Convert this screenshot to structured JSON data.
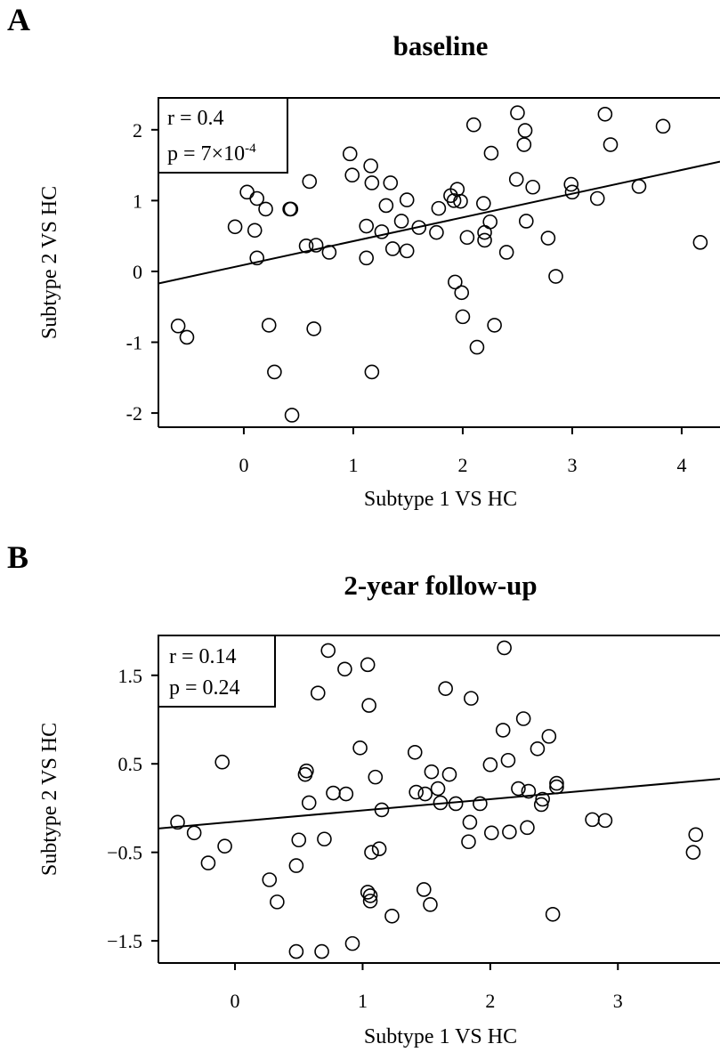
{
  "chart_data": [
    {
      "type": "scatter",
      "panel": "A",
      "title": "baseline",
      "xlabel": "Subtype 1 VS HC",
      "ylabel": "Subtype 2 VS HC",
      "xlim": [
        -0.78,
        4.35
      ],
      "ylim": [
        -2.2,
        2.45
      ],
      "xticks": [
        0,
        1,
        2,
        3,
        4
      ],
      "yticks": [
        -2,
        -1,
        0,
        1,
        2
      ],
      "grid": false,
      "stats": {
        "r": "r = 0.4",
        "p_prefix": "p = 7×10",
        "p_exp": "-4"
      },
      "fit_line": {
        "x": [
          -0.78,
          4.35
        ],
        "y": [
          -0.17,
          1.55
        ]
      },
      "points": [
        [
          -0.6,
          -0.77
        ],
        [
          -0.52,
          -0.93
        ],
        [
          -0.08,
          0.63
        ],
        [
          0.03,
          1.12
        ],
        [
          0.1,
          0.58
        ],
        [
          0.12,
          1.03
        ],
        [
          0.12,
          0.19
        ],
        [
          0.2,
          0.88
        ],
        [
          0.23,
          -0.76
        ],
        [
          0.28,
          -1.42
        ],
        [
          0.42,
          0.88
        ],
        [
          0.43,
          0.88
        ],
        [
          0.44,
          -2.03
        ],
        [
          0.57,
          0.36
        ],
        [
          0.6,
          1.27
        ],
        [
          0.64,
          -0.81
        ],
        [
          0.66,
          0.37
        ],
        [
          0.78,
          0.27
        ],
        [
          0.97,
          1.66
        ],
        [
          0.99,
          1.36
        ],
        [
          1.12,
          0.64
        ],
        [
          1.12,
          0.19
        ],
        [
          1.16,
          1.49
        ],
        [
          1.17,
          1.25
        ],
        [
          1.17,
          -1.42
        ],
        [
          1.26,
          0.56
        ],
        [
          1.3,
          0.93
        ],
        [
          1.34,
          1.25
        ],
        [
          1.36,
          0.32
        ],
        [
          1.44,
          0.71
        ],
        [
          1.49,
          0.29
        ],
        [
          1.49,
          1.01
        ],
        [
          1.6,
          0.62
        ],
        [
          1.76,
          0.55
        ],
        [
          1.78,
          0.89
        ],
        [
          1.89,
          1.07
        ],
        [
          1.92,
          1.0
        ],
        [
          1.93,
          -0.15
        ],
        [
          1.95,
          1.16
        ],
        [
          1.98,
          0.99
        ],
        [
          1.99,
          -0.3
        ],
        [
          2.0,
          -0.64
        ],
        [
          2.04,
          0.48
        ],
        [
          2.1,
          2.07
        ],
        [
          2.13,
          -1.07
        ],
        [
          2.19,
          0.96
        ],
        [
          2.2,
          0.55
        ],
        [
          2.2,
          0.44
        ],
        [
          2.25,
          0.7
        ],
        [
          2.26,
          1.67
        ],
        [
          2.29,
          -0.76
        ],
        [
          2.4,
          0.27
        ],
        [
          2.49,
          1.3
        ],
        [
          2.5,
          2.24
        ],
        [
          2.56,
          1.79
        ],
        [
          2.57,
          1.99
        ],
        [
          2.58,
          0.71
        ],
        [
          2.64,
          1.19
        ],
        [
          2.78,
          0.47
        ],
        [
          2.85,
          -0.07
        ],
        [
          2.99,
          1.23
        ],
        [
          3.0,
          1.12
        ],
        [
          3.23,
          1.03
        ],
        [
          3.3,
          2.22
        ],
        [
          3.35,
          1.79
        ],
        [
          3.61,
          1.2
        ],
        [
          3.83,
          2.05
        ],
        [
          4.17,
          0.41
        ]
      ]
    },
    {
      "type": "scatter",
      "panel": "B",
      "title": "2-year follow-up",
      "xlabel": "Subtype 1 VS HC",
      "ylabel": "Subtype 2 VS HC",
      "xlim": [
        -0.6,
        3.8
      ],
      "ylim": [
        -1.75,
        1.95
      ],
      "xticks": [
        0,
        1,
        2,
        3
      ],
      "yticks": [
        -1.5,
        -0.5,
        0.5,
        1.5
      ],
      "grid": false,
      "stats": {
        "r": "r = 0.14",
        "p": "p = 0.24"
      },
      "fit_line": {
        "x": [
          -0.6,
          3.8
        ],
        "y": [
          -0.23,
          0.33
        ]
      },
      "points": [
        [
          -0.45,
          -0.16
        ],
        [
          -0.32,
          -0.28
        ],
        [
          -0.08,
          -0.43
        ],
        [
          -0.21,
          -0.62
        ],
        [
          -0.1,
          0.52
        ],
        [
          0.27,
          -0.81
        ],
        [
          0.33,
          -1.06
        ],
        [
          0.48,
          -0.65
        ],
        [
          0.5,
          -0.36
        ],
        [
          0.48,
          -1.62
        ],
        [
          0.55,
          0.38
        ],
        [
          0.56,
          0.42
        ],
        [
          0.58,
          0.06
        ],
        [
          0.65,
          1.3
        ],
        [
          0.68,
          -1.62
        ],
        [
          0.7,
          -0.35
        ],
        [
          0.73,
          1.78
        ],
        [
          0.77,
          0.17
        ],
        [
          0.87,
          0.16
        ],
        [
          0.86,
          1.57
        ],
        [
          0.92,
          -1.53
        ],
        [
          0.98,
          0.68
        ],
        [
          1.04,
          1.62
        ],
        [
          1.04,
          -0.95
        ],
        [
          1.05,
          1.16
        ],
        [
          1.06,
          -0.99
        ],
        [
          1.06,
          -1.05
        ],
        [
          1.07,
          -0.5
        ],
        [
          1.1,
          0.35
        ],
        [
          1.13,
          -0.46
        ],
        [
          1.15,
          -0.02
        ],
        [
          1.23,
          -1.22
        ],
        [
          1.41,
          0.63
        ],
        [
          1.42,
          0.18
        ],
        [
          1.48,
          -0.92
        ],
        [
          1.49,
          0.16
        ],
        [
          1.53,
          -1.09
        ],
        [
          1.54,
          0.41
        ],
        [
          1.59,
          0.22
        ],
        [
          1.61,
          0.06
        ],
        [
          1.65,
          1.35
        ],
        [
          1.68,
          0.38
        ],
        [
          1.73,
          0.05
        ],
        [
          1.83,
          -0.38
        ],
        [
          1.84,
          -0.16
        ],
        [
          1.85,
          1.24
        ],
        [
          1.92,
          0.05
        ],
        [
          2.0,
          0.49
        ],
        [
          2.01,
          -0.28
        ],
        [
          2.1,
          0.88
        ],
        [
          2.11,
          1.81
        ],
        [
          2.14,
          0.54
        ],
        [
          2.15,
          -0.27
        ],
        [
          2.22,
          0.22
        ],
        [
          2.26,
          1.01
        ],
        [
          2.29,
          -0.22
        ],
        [
          2.3,
          0.19
        ],
        [
          2.37,
          0.67
        ],
        [
          2.4,
          0.04
        ],
        [
          2.41,
          0.1
        ],
        [
          2.46,
          0.81
        ],
        [
          2.49,
          -1.2
        ],
        [
          2.52,
          0.24
        ],
        [
          2.52,
          0.28
        ],
        [
          2.8,
          -0.13
        ],
        [
          2.9,
          -0.14
        ],
        [
          3.59,
          -0.5
        ],
        [
          3.61,
          -0.3
        ]
      ]
    }
  ]
}
